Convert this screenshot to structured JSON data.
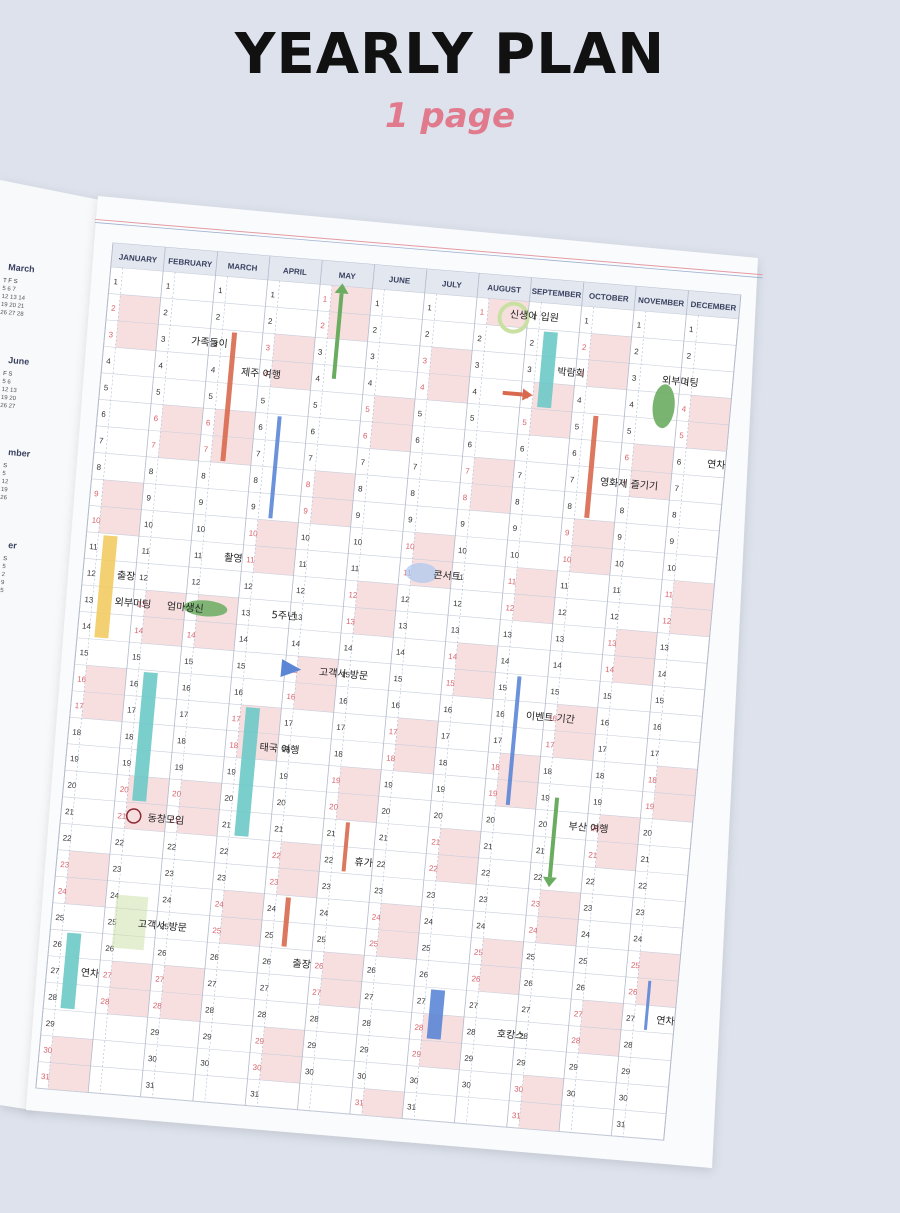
{
  "header": {
    "title": "YEARLY PLAN",
    "subtitle": "1 page"
  },
  "left_page": {
    "fragments": [
      {
        "heading": "March",
        "lines": [
          "T  F  S",
          "5  6  7",
          "12 13 14",
          "19 20 21",
          "26 27 28"
        ]
      },
      {
        "heading": "June",
        "lines": [
          "F  S",
          "5  6",
          "12 13",
          "19 20",
          "26 27"
        ]
      },
      {
        "heading": "mber",
        "lines": [
          "S",
          "5",
          "12",
          "19",
          "26"
        ]
      },
      {
        "heading": "er",
        "lines": [
          "S",
          "5",
          "2",
          "9",
          "5"
        ]
      }
    ]
  },
  "calendar": {
    "months": [
      "JANUARY",
      "FEBRUARY",
      "MARCH",
      "APRIL",
      "MAY",
      "JUNE",
      "JULY",
      "AUGUST",
      "SEPTEMBER",
      "OCTOBER",
      "NOVEMBER",
      "DECEMBER"
    ],
    "first_weekday": [
      4,
      0,
      0,
      3,
      5,
      1,
      3,
      6,
      2,
      4,
      0,
      2
    ],
    "days_in_month": [
      31,
      28,
      31,
      30,
      31,
      30,
      31,
      31,
      30,
      31,
      30,
      31
    ],
    "weekend_color": "#d9606a",
    "weekend_fill": "#f7dfe0"
  },
  "annotations": [
    {
      "id": "family-outing",
      "text": "가족들이",
      "month": 1,
      "day": 3
    },
    {
      "id": "jeju-trip",
      "text": "제주 여행",
      "month": 2,
      "day": 4
    },
    {
      "id": "filming",
      "text": "촬영",
      "month": 2,
      "day": 11
    },
    {
      "id": "mom-birthday",
      "text": "엄마생신",
      "month": 1,
      "day": 13
    },
    {
      "id": "anniversary",
      "text": "5주년",
      "month": 3,
      "day": 13
    },
    {
      "id": "business-trip-jan",
      "text": "출장",
      "month": 0,
      "day": 12
    },
    {
      "id": "out-meeting-jan",
      "text": "외부미팅",
      "month": 0,
      "day": 13
    },
    {
      "id": "client-visit-may",
      "text": "고객사 방문",
      "month": 4,
      "day": 15
    },
    {
      "id": "thailand-trip",
      "text": "태국 여행",
      "month": 3,
      "day": 18
    },
    {
      "id": "alumni",
      "text": "동창모임",
      "month": 1,
      "day": 21
    },
    {
      "id": "client-visit-feb",
      "text": "고객사 방문",
      "month": 1,
      "day": 25
    },
    {
      "id": "vacation-jan",
      "text": "연차",
      "month": 0,
      "day": 27
    },
    {
      "id": "business-trip-mar",
      "text": "출장",
      "month": 4,
      "day": 26
    },
    {
      "id": "holiday-may",
      "text": "휴가",
      "month": 5,
      "day": 22
    },
    {
      "id": "concert",
      "text": "콘서트",
      "month": 6,
      "day": 11
    },
    {
      "id": "newborn",
      "text": "신생아 입원",
      "month": 7,
      "day": 1
    },
    {
      "id": "expo",
      "text": "박람회",
      "month": 8,
      "day": 3
    },
    {
      "id": "film-fest",
      "text": "영화제 즐기기",
      "month": 9,
      "day": 7
    },
    {
      "id": "external-meeting",
      "text": "외부미팅",
      "month": 10,
      "day": 3
    },
    {
      "id": "leave-dec",
      "text": "연차",
      "month": 11,
      "day": 6
    },
    {
      "id": "event-period",
      "text": "이벤트 기간",
      "month": 8,
      "day": 16
    },
    {
      "id": "busan-trip",
      "text": "부산 여행",
      "month": 9,
      "day": 20
    },
    {
      "id": "vacance",
      "text": "호캉스",
      "month": 8,
      "day": 28
    },
    {
      "id": "leave-nov",
      "text": "연차",
      "month": 11,
      "day": 27
    }
  ],
  "colors": {
    "red": "#d8694e",
    "blue": "#5b86d6",
    "green": "#6aad61",
    "teal": "#6cc9c6",
    "yellow": "#f2cc63",
    "lime": "#c9e0a3",
    "pink": "#e07a8c"
  }
}
